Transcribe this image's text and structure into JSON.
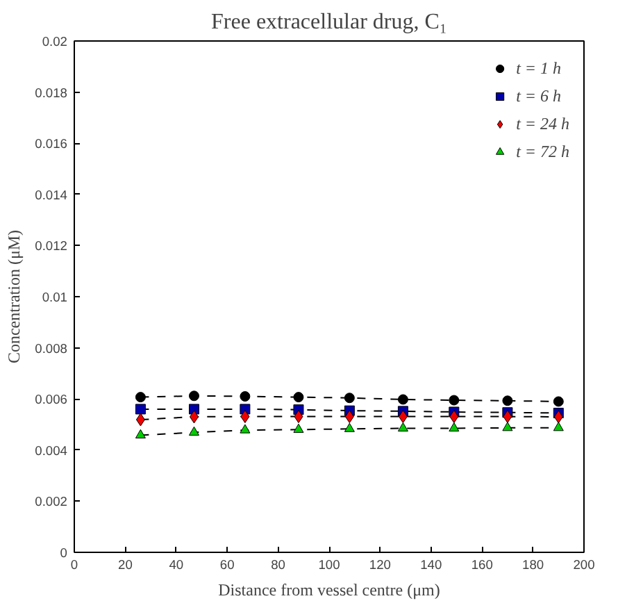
{
  "chart_data": {
    "type": "line",
    "title": "Free extracellular drug, C₁",
    "xlabel": "Distance from vessel centre (μm)",
    "ylabel": "Concentration (μM)",
    "x": [
      26,
      47,
      67,
      88,
      108,
      129,
      149,
      170,
      190
    ],
    "xlim": [
      0,
      200
    ],
    "xticks": [
      0,
      20,
      40,
      60,
      80,
      100,
      120,
      140,
      160,
      180,
      200
    ],
    "ylim": [
      0,
      0.02
    ],
    "yticks": [
      0,
      0.002,
      0.004,
      0.006,
      0.008,
      0.01,
      0.012,
      0.014,
      0.016,
      0.018,
      0.02
    ],
    "grid": false,
    "legend": "top right",
    "line_style": "dashed",
    "series": [
      {
        "name": "t = 1 h",
        "color": "#000000",
        "marker": "circle",
        "values": [
          0.00607,
          0.00612,
          0.0061,
          0.00607,
          0.00604,
          0.00598,
          0.00595,
          0.00593,
          0.0059
        ]
      },
      {
        "name": "t = 6 h",
        "color": "#0000aa",
        "marker": "square",
        "values": [
          0.0056,
          0.0056,
          0.0056,
          0.00558,
          0.00554,
          0.00552,
          0.00549,
          0.00547,
          0.00545
        ]
      },
      {
        "name": "t = 24 h",
        "color": "#ee0000",
        "marker": "diamond",
        "values": [
          0.00519,
          0.0053,
          0.00531,
          0.00531,
          0.00531,
          0.00531,
          0.00531,
          0.00531,
          0.0053
        ]
      },
      {
        "name": "t = 72 h",
        "color": "#00cc00",
        "marker": "triangle",
        "values": [
          0.00458,
          0.00469,
          0.00478,
          0.0048,
          0.00483,
          0.00485,
          0.00485,
          0.00487,
          0.00487
        ]
      }
    ]
  }
}
